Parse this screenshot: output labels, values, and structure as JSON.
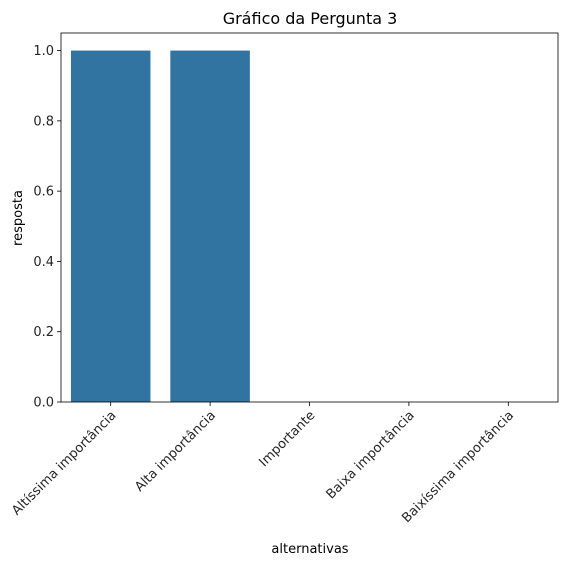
{
  "chart_data": {
    "type": "bar",
    "title": "Gráfico da Pergunta 3",
    "xlabel": "alternativas",
    "ylabel": "resposta",
    "categories": [
      "Altíssima importância",
      "Alta importância",
      "Importante",
      "Baixa importância",
      "Baixíssima importância"
    ],
    "values": [
      1.0,
      1.0,
      0,
      0,
      0
    ],
    "ylim": [
      0,
      1.05
    ],
    "yticks": [
      "0.0",
      "0.2",
      "0.4",
      "0.6",
      "0.8",
      "1.0"
    ],
    "grid": false,
    "bar_color": "#3274a1"
  }
}
